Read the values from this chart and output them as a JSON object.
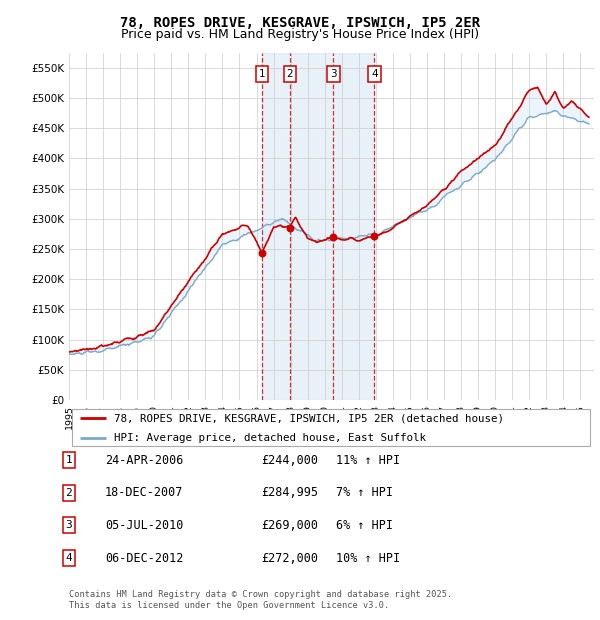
{
  "title": "78, ROPES DRIVE, KESGRAVE, IPSWICH, IP5 2ER",
  "subtitle": "Price paid vs. HM Land Registry's House Price Index (HPI)",
  "ylim": [
    0,
    575000
  ],
  "yticks": [
    0,
    50000,
    100000,
    150000,
    200000,
    250000,
    300000,
    350000,
    400000,
    450000,
    500000,
    550000
  ],
  "ytick_labels": [
    "£0",
    "£50K",
    "£100K",
    "£150K",
    "£200K",
    "£250K",
    "£300K",
    "£350K",
    "£400K",
    "£450K",
    "£500K",
    "£550K"
  ],
  "legend_line1": "78, ROPES DRIVE, KESGRAVE, IPSWICH, IP5 2ER (detached house)",
  "legend_line2": "HPI: Average price, detached house, East Suffolk",
  "sale_labels": [
    "1",
    "2",
    "3",
    "4"
  ],
  "sale_dates_str": [
    "24-APR-2006",
    "18-DEC-2007",
    "05-JUL-2010",
    "06-DEC-2012"
  ],
  "sale_prices": [
    244000,
    284995,
    269000,
    272000
  ],
  "sale_prices_str": [
    "£244,000",
    "£284,995",
    "£269,000",
    "£272,000"
  ],
  "sale_hpi_pct": [
    "11% ↑ HPI",
    "7% ↑ HPI",
    "6% ↑ HPI",
    "10% ↑ HPI"
  ],
  "sale_years": [
    2006.31,
    2007.96,
    2010.51,
    2012.92
  ],
  "line_color_red": "#cc0000",
  "line_color_blue": "#7aaac8",
  "fill_color_blue": "#ddeeff",
  "grid_color": "#cccccc",
  "background_color": "#ffffff",
  "footnote": "Contains HM Land Registry data © Crown copyright and database right 2025.\nThis data is licensed under the Open Government Licence v3.0.",
  "title_fontsize": 10,
  "subtitle_fontsize": 9
}
